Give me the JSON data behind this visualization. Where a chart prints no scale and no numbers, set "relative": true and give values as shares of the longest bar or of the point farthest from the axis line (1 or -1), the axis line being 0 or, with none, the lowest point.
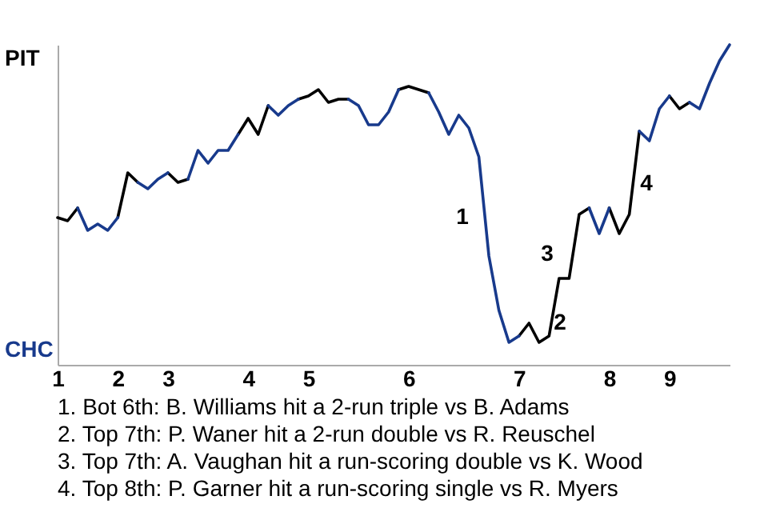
{
  "chart_data": {
    "type": "line",
    "relative": true,
    "categories": [
      "1",
      null,
      null,
      null,
      null,
      null,
      "2",
      null,
      null,
      null,
      null,
      "3",
      null,
      null,
      null,
      null,
      null,
      null,
      null,
      "4",
      null,
      null,
      null,
      null,
      null,
      "5",
      null,
      null,
      null,
      null,
      null,
      null,
      null,
      null,
      null,
      "6",
      null,
      null,
      null,
      null,
      null,
      null,
      null,
      null,
      null,
      null,
      "7",
      null,
      null,
      null,
      null,
      null,
      null,
      null,
      null,
      "8",
      null,
      null,
      null,
      null,
      null,
      "9",
      null,
      null,
      null,
      null,
      null,
      null
    ],
    "series": [
      {
        "color": "#000000",
        "values": [
          0.46,
          0.45,
          0.49,
          null,
          null,
          null,
          0.46,
          0.6,
          0.57,
          null,
          null,
          0.6,
          0.57,
          0.58,
          null,
          null,
          null,
          null,
          0.72,
          0.77,
          0.72,
          0.81,
          null,
          null,
          0.83,
          0.84,
          0.86,
          0.82,
          0.83,
          0.83,
          null,
          null,
          null,
          null,
          0.86,
          0.87,
          0.86,
          0.85,
          null,
          null,
          null,
          null,
          null,
          null,
          null,
          null,
          0.09,
          0.13,
          0.07,
          0.09,
          0.27,
          0.27,
          0.47,
          0.49,
          null,
          0.49,
          0.41,
          0.47,
          0.73,
          null,
          null,
          0.84,
          0.8,
          0.82,
          null,
          null,
          null,
          null
        ]
      },
      {
        "color": "#183a8c",
        "values": [
          null,
          null,
          0.49,
          0.42,
          0.44,
          0.42,
          0.46,
          null,
          0.57,
          0.55,
          0.58,
          0.6,
          null,
          0.58,
          0.67,
          0.63,
          0.67,
          0.67,
          0.72,
          null,
          null,
          0.81,
          0.78,
          0.81,
          0.83,
          null,
          null,
          null,
          null,
          0.83,
          0.81,
          0.75,
          0.75,
          0.79,
          0.86,
          null,
          null,
          0.85,
          0.79,
          0.72,
          0.78,
          0.74,
          0.65,
          0.34,
          0.17,
          0.07,
          0.09,
          null,
          null,
          null,
          null,
          null,
          null,
          0.49,
          0.41,
          0.49,
          null,
          null,
          0.73,
          0.7,
          0.8,
          0.84,
          null,
          0.82,
          0.8,
          0.88,
          0.95,
          1
        ]
      }
    ],
    "annotations": [
      "PIT",
      "CHC",
      "1",
      "2",
      "3",
      "4",
      "1. Bot 6th: B. Williams hit a 2-run triple vs B. Adams",
      "2. Top 7th: P. Waner hit a 2-run double vs R. Reuschel",
      "3. Top 7th: A. Vaughan hit a run-scoring double vs K. Wood",
      "4. Top 8th: P. Garner hit a run-scoring single vs R. Myers"
    ]
  }
}
